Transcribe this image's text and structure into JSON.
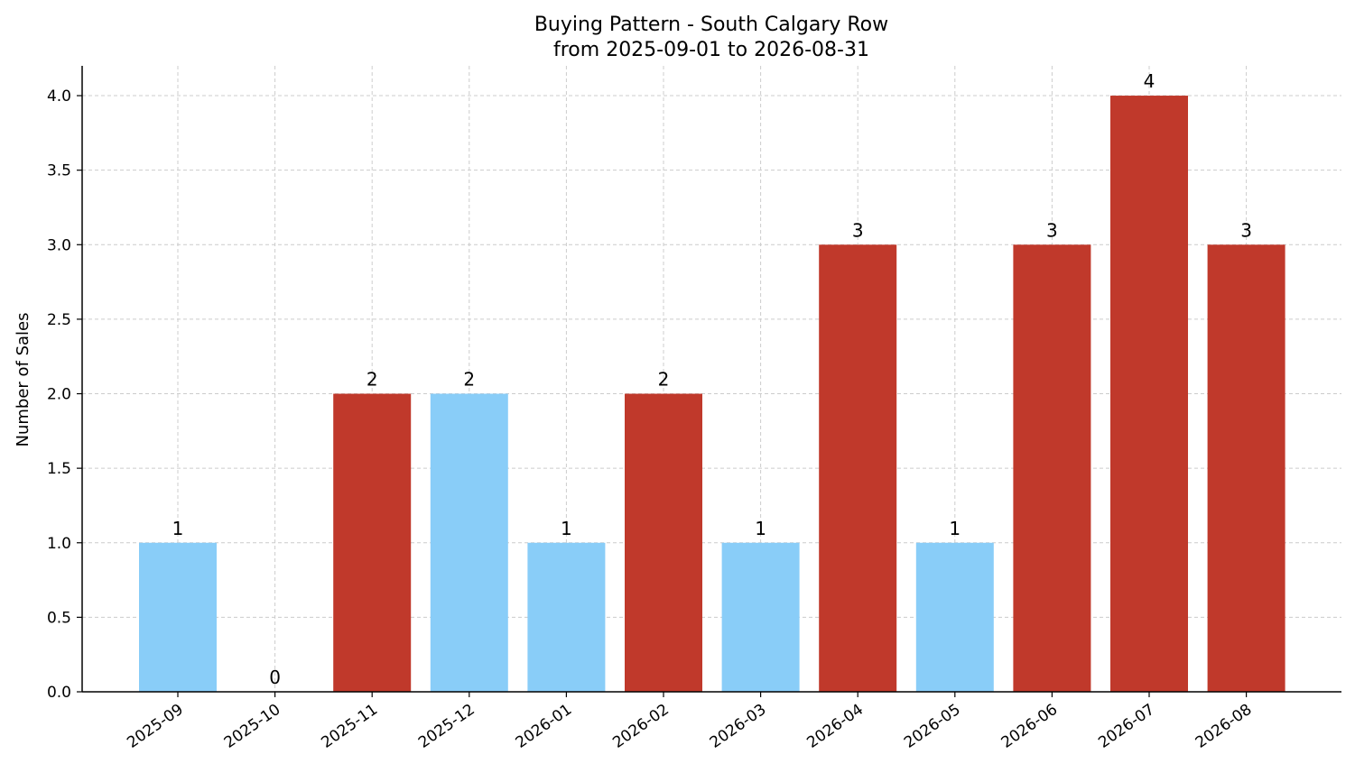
{
  "chart_data": {
    "type": "bar",
    "title": "Buying Pattern - South Calgary Row",
    "subtitle": "from 2025-09-01 to 2026-08-31",
    "xlabel": "",
    "ylabel": "Number of Sales",
    "categories": [
      "2025-09",
      "2025-10",
      "2025-11",
      "2025-12",
      "2026-01",
      "2026-02",
      "2026-03",
      "2026-04",
      "2026-05",
      "2026-06",
      "2026-07",
      "2026-08"
    ],
    "values": [
      1,
      0,
      2,
      2,
      1,
      2,
      1,
      3,
      1,
      3,
      4,
      3
    ],
    "value_labels": [
      "1",
      "0",
      "2",
      "2",
      "1",
      "2",
      "1",
      "3",
      "1",
      "3",
      "4",
      "3"
    ],
    "bar_colors": [
      "#89cdf8",
      "#89cdf8",
      "#c0392b",
      "#89cdf8",
      "#89cdf8",
      "#c0392b",
      "#89cdf8",
      "#c0392b",
      "#89cdf8",
      "#c0392b",
      "#c0392b",
      "#c0392b"
    ],
    "ylim": [
      0,
      4.2
    ],
    "yticks": [
      0.0,
      0.5,
      1.0,
      1.5,
      2.0,
      2.5,
      3.0,
      3.5,
      4.0
    ],
    "ytick_labels": [
      "0.0",
      "0.5",
      "1.0",
      "1.5",
      "2.0",
      "2.5",
      "3.0",
      "3.5",
      "4.0"
    ],
    "grid": true,
    "legend": "none"
  }
}
